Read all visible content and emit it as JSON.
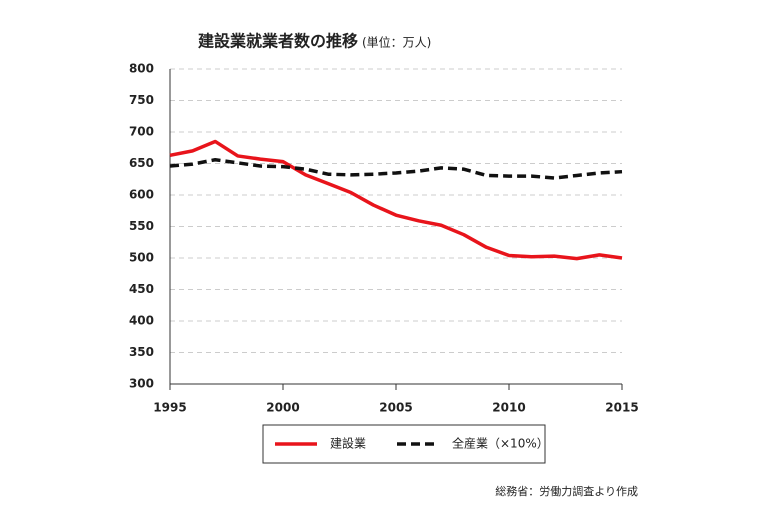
{
  "chart_data": {
    "type": "line",
    "title": "建設業就業者数の推移",
    "subtitle": "(単位：万人)",
    "x": [
      1995,
      1996,
      1997,
      1998,
      1999,
      2000,
      2001,
      2002,
      2003,
      2004,
      2005,
      2006,
      2007,
      2008,
      2009,
      2010,
      2011,
      2012,
      2013,
      2014,
      2015
    ],
    "series": [
      {
        "name": "建設業",
        "color": "#e8141b",
        "dash": false,
        "values": [
          663,
          670,
          685,
          662,
          657,
          653,
          632,
          618,
          604,
          584,
          568,
          559,
          552,
          537,
          517,
          504,
          502,
          503,
          499,
          505,
          500
        ]
      },
      {
        "name": "全産業（×10%）",
        "color": "#111111",
        "dash": true,
        "values": [
          646,
          649,
          656,
          651,
          646,
          645,
          641,
          633,
          632,
          633,
          635,
          638,
          643,
          641,
          631,
          630,
          630,
          627,
          631,
          635,
          637
        ]
      }
    ],
    "xlim": [
      1995,
      2015
    ],
    "xticks": [
      1995,
      2000,
      2005,
      2010,
      2015
    ],
    "ylim": [
      300,
      800
    ],
    "yticks": [
      300,
      350,
      400,
      450,
      500,
      550,
      600,
      650,
      700,
      750,
      800
    ],
    "grid": true,
    "legend": "bottom",
    "source": "総務省：労働力調査より作成"
  }
}
